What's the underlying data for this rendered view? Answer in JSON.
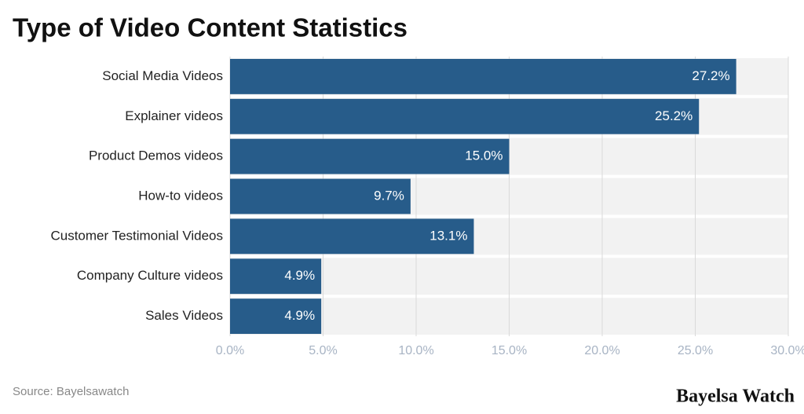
{
  "chart_data": {
    "type": "bar",
    "orientation": "horizontal",
    "title": "Type of Video Content Statistics",
    "categories": [
      "Social Media Videos",
      "Explainer videos",
      "Product Demos videos",
      "How-to videos",
      "Customer Testimonial Videos",
      "Company Culture videos",
      "Sales Videos"
    ],
    "values": [
      27.2,
      25.2,
      15.0,
      9.7,
      13.1,
      4.9,
      4.9
    ],
    "value_labels": [
      "27.2%",
      "25.2%",
      "15.0%",
      "9.7%",
      "13.1%",
      "4.9%",
      "4.9%"
    ],
    "color": "#275c8a",
    "xlim": [
      0,
      30
    ],
    "xticks": [
      {
        "value": 0,
        "label": "0.0%"
      },
      {
        "value": 5,
        "label": "5.0%"
      },
      {
        "value": 10,
        "label": "10.0%"
      },
      {
        "value": 15,
        "label": "15.0%"
      },
      {
        "value": 20,
        "label": "20.0%"
      },
      {
        "value": 25,
        "label": "25.0%"
      },
      {
        "value": 30,
        "label": "30.0%"
      }
    ],
    "grid": true,
    "source": "Source: Bayelsawatch",
    "brand": "Bayelsa Watch"
  }
}
